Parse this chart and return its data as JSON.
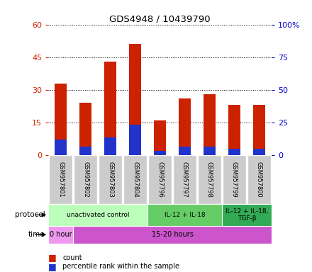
{
  "title": "GDS4948 / 10439790",
  "samples": [
    "GSM957801",
    "GSM957802",
    "GSM957803",
    "GSM957804",
    "GSM957796",
    "GSM957797",
    "GSM957798",
    "GSM957799",
    "GSM957800"
  ],
  "count_values": [
    33,
    24,
    43,
    51,
    16,
    26,
    28,
    23,
    23
  ],
  "percentile_values": [
    7,
    4,
    8,
    14,
    2,
    4,
    4,
    3,
    3
  ],
  "left_ylim": [
    0,
    60
  ],
  "right_ylim": [
    0,
    100
  ],
  "left_yticks": [
    0,
    15,
    30,
    45,
    60
  ],
  "right_yticks": [
    0,
    25,
    50,
    75,
    100
  ],
  "left_yticklabels": [
    "0",
    "15",
    "30",
    "45",
    "60"
  ],
  "right_yticklabels": [
    "0",
    "25",
    "50",
    "75",
    "100%"
  ],
  "bar_color_count": "#cc2200",
  "bar_color_pct": "#2233cc",
  "grid_color": "#000000",
  "left_tick_color": "#cc2200",
  "right_tick_color": "#0000cc",
  "protocol_groups": [
    {
      "label": "unactivated control",
      "start": 0,
      "end": 4,
      "color": "#bbffbb"
    },
    {
      "label": "IL-12 + IL-18",
      "start": 4,
      "end": 7,
      "color": "#66cc66"
    },
    {
      "label": "IL-12 + IL-18,\nTGF-β",
      "start": 7,
      "end": 9,
      "color": "#33aa55"
    }
  ],
  "time_groups": [
    {
      "label": "0 hour",
      "start": 0,
      "end": 1,
      "color": "#ee99ee"
    },
    {
      "label": "15-20 hours",
      "start": 1,
      "end": 9,
      "color": "#cc55cc"
    }
  ],
  "label_protocol": "protocol",
  "label_time": "time",
  "legend_count": "count",
  "legend_pct": "percentile rank within the sample",
  "bar_width": 0.5,
  "sample_bg_color": "#cccccc"
}
